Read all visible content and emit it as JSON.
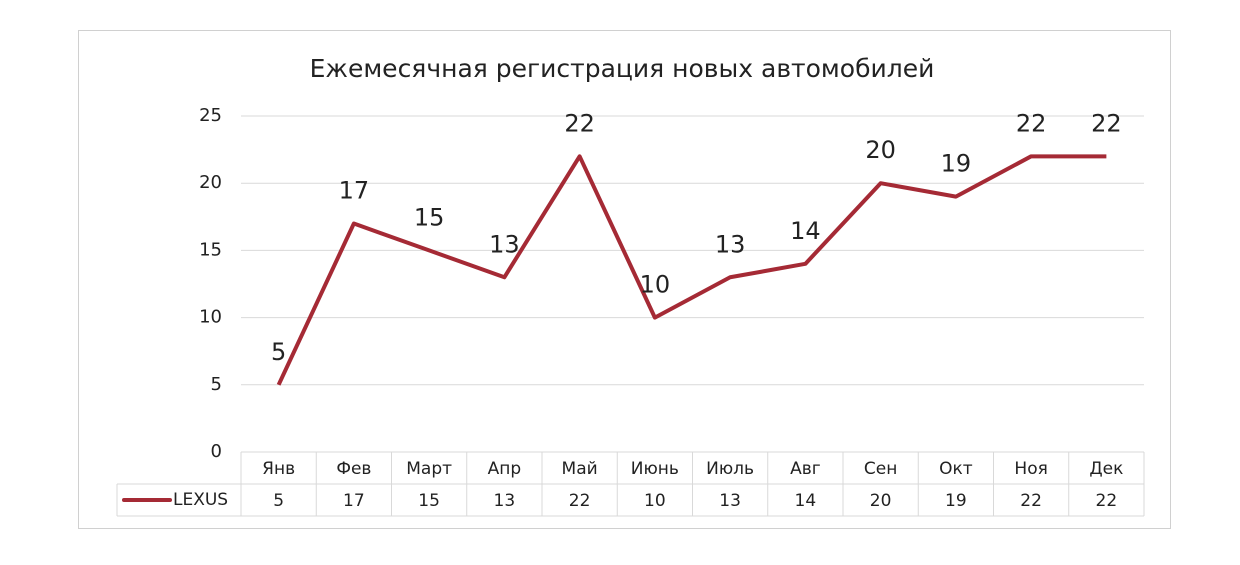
{
  "chart_data": {
    "type": "line",
    "title": "Ежемесячная регистрация новых автомобилей",
    "categories": [
      "Янв",
      "Фев",
      "Март",
      "Апр",
      "Май",
      "Июнь",
      "Июль",
      "Авг",
      "Сен",
      "Окт",
      "Ноя",
      "Дек"
    ],
    "series": [
      {
        "name": "LEXUS",
        "color": "#a52a35",
        "values": [
          5,
          17,
          15,
          13,
          22,
          10,
          13,
          14,
          20,
          19,
          22,
          22
        ]
      }
    ],
    "ylim": [
      0,
      25
    ],
    "yticks": [
      0,
      5,
      10,
      15,
      20,
      25
    ],
    "grid": true,
    "data_table": true
  }
}
